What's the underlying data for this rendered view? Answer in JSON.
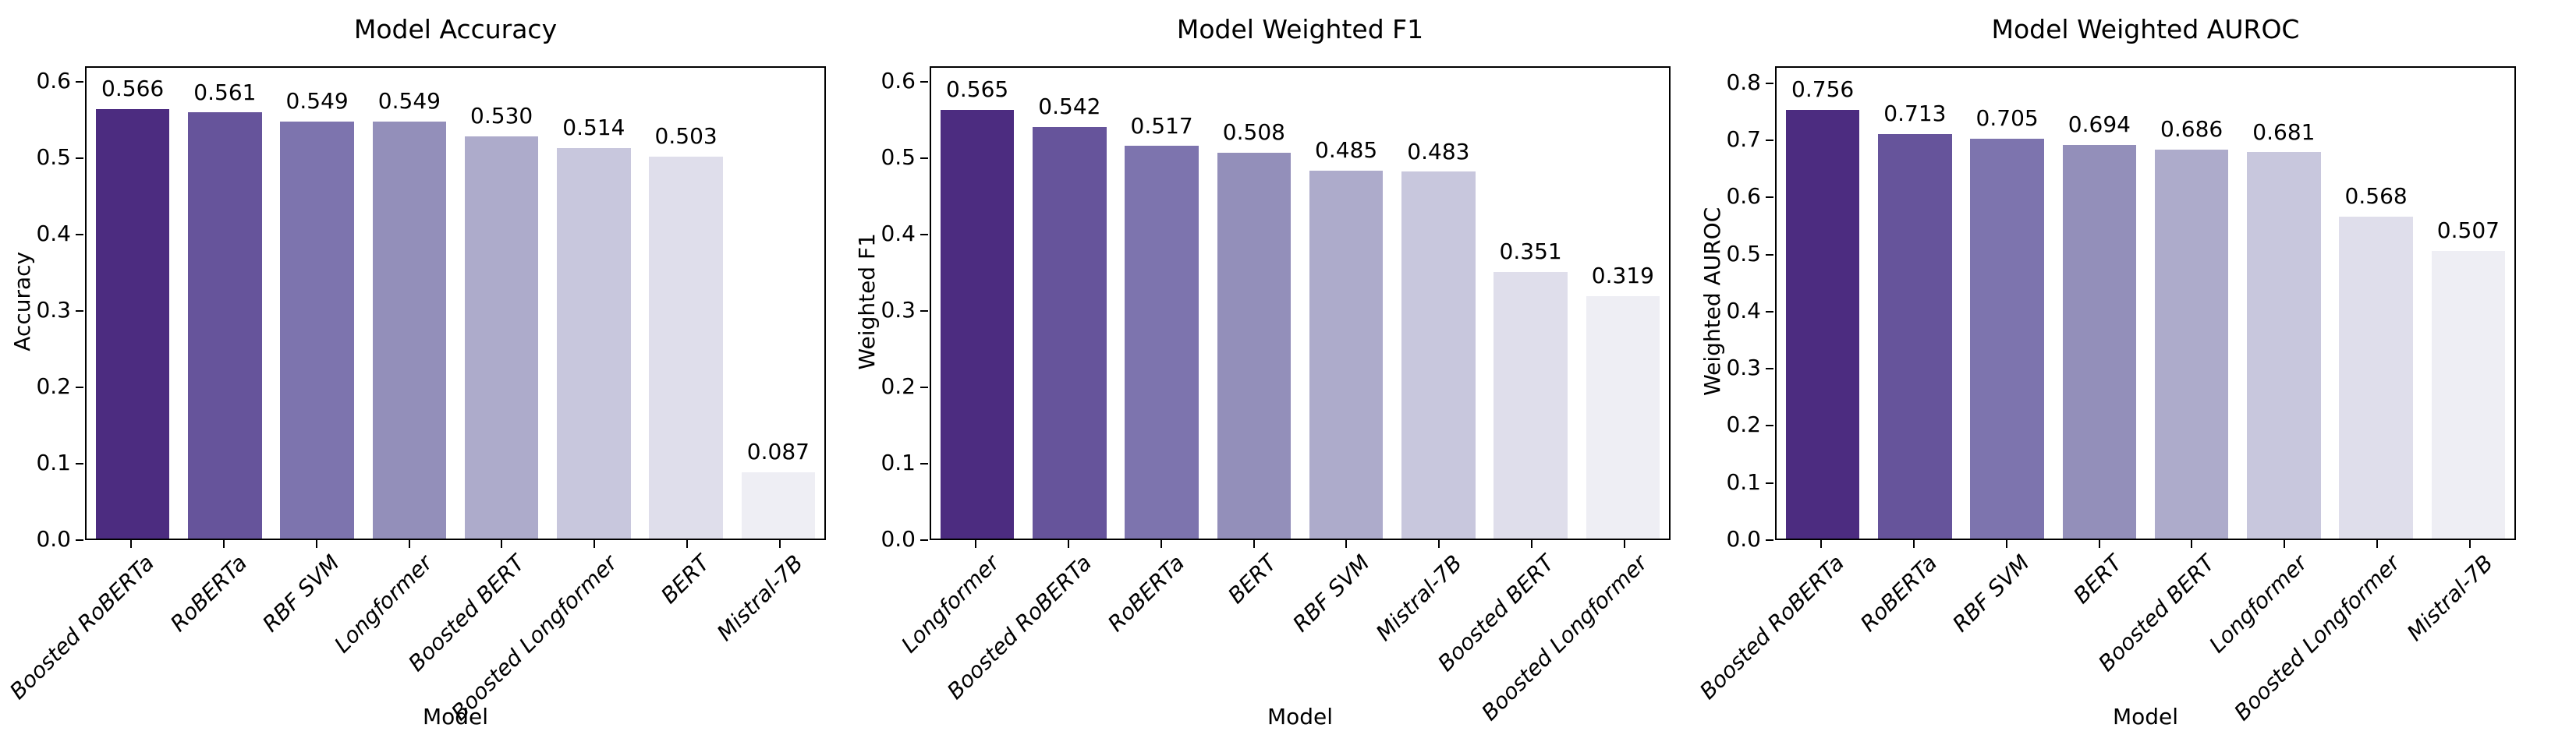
{
  "figure": {
    "background": "#ffffff",
    "text_color": "#000000",
    "spine_color": "#000000"
  },
  "bar_colors": [
    "#4C2C80",
    "#66549B",
    "#7D74AE",
    "#938FBA",
    "#ADABCB",
    "#C8C7DD",
    "#DFDEEB",
    "#EEEEF4"
  ],
  "chart_data": [
    {
      "type": "bar",
      "title": "Model Accuracy",
      "xlabel": "Model",
      "ylabel": "Accuracy",
      "categories": [
        "Boosted RoBERTa",
        "RoBERTa",
        "RBF SVM",
        "Longformer",
        "Boosted BERT",
        "Boosted Longformer",
        "BERT",
        "Mistral-7B"
      ],
      "values": [
        0.566,
        0.561,
        0.549,
        0.549,
        0.53,
        0.514,
        0.503,
        0.087
      ],
      "yticks": [
        0.0,
        0.1,
        0.2,
        0.3,
        0.4,
        0.5,
        0.6
      ],
      "ylim": [
        0,
        0.62
      ],
      "grid": false,
      "legend": false,
      "value_labels": true
    },
    {
      "type": "bar",
      "title": "Model Weighted F1",
      "xlabel": "Model",
      "ylabel": "Weighted F1",
      "categories": [
        "Longformer",
        "Boosted RoBERTa",
        "RoBERTa",
        "BERT",
        "RBF SVM",
        "Mistral-7B",
        "Boosted BERT",
        "Boosted Longformer"
      ],
      "values": [
        0.565,
        0.542,
        0.517,
        0.508,
        0.485,
        0.483,
        0.351,
        0.319
      ],
      "yticks": [
        0.0,
        0.1,
        0.2,
        0.3,
        0.4,
        0.5,
        0.6
      ],
      "ylim": [
        0,
        0.62
      ],
      "grid": false,
      "legend": false,
      "value_labels": true
    },
    {
      "type": "bar",
      "title": "Model Weighted AUROC",
      "xlabel": "Model",
      "ylabel": "Weighted AUROC",
      "categories": [
        "Boosted RoBERTa",
        "RoBERTa",
        "RBF SVM",
        "BERT",
        "Boosted BERT",
        "Longformer",
        "Boosted Longformer",
        "Mistral-7B"
      ],
      "values": [
        0.756,
        0.713,
        0.705,
        0.694,
        0.686,
        0.681,
        0.568,
        0.507
      ],
      "yticks": [
        0.0,
        0.1,
        0.2,
        0.3,
        0.4,
        0.5,
        0.6,
        0.7,
        0.8
      ],
      "ylim": [
        0,
        0.83
      ],
      "grid": false,
      "legend": false,
      "value_labels": true
    }
  ]
}
